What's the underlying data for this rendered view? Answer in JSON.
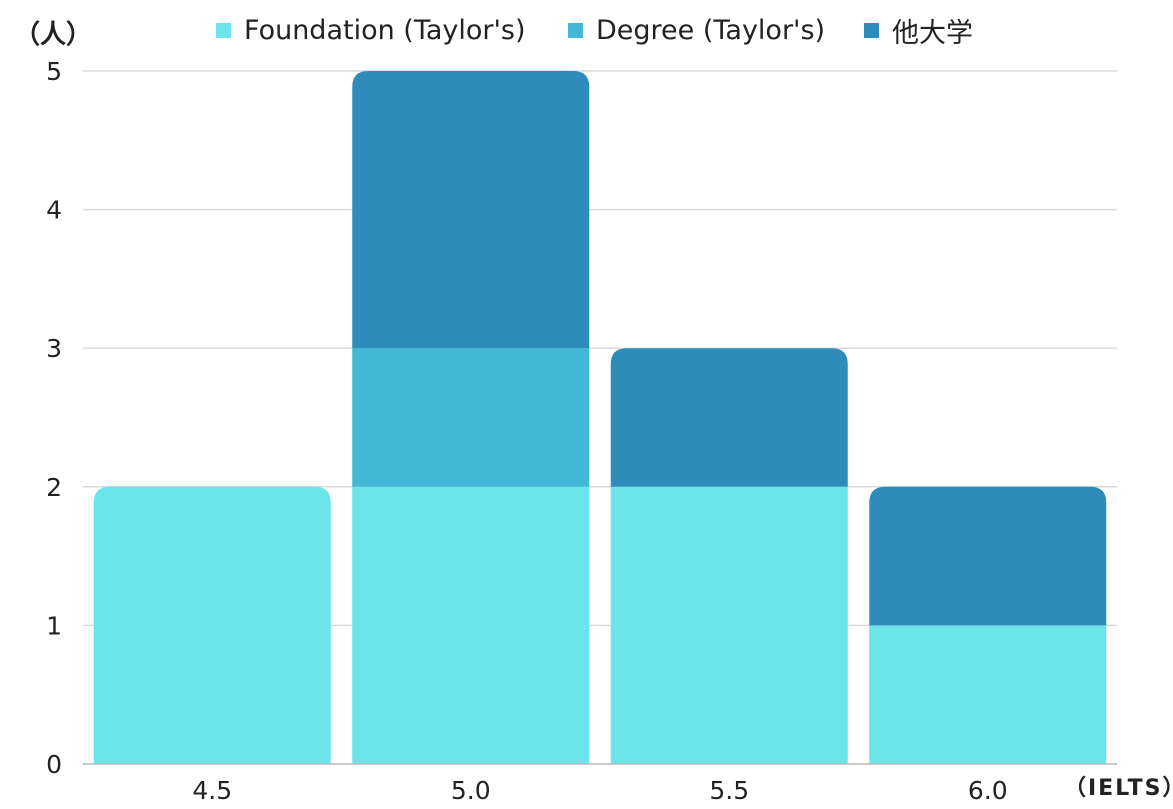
{
  "chart_data": {
    "type": "bar",
    "stacked": true,
    "categories": [
      "4.5",
      "5.0",
      "5.5",
      "6.0"
    ],
    "series": [
      {
        "name": "Foundation (Taylor's)",
        "values": [
          2,
          2,
          2,
          1
        ],
        "color": "#6ce5ea"
      },
      {
        "name": "Degree (Taylor's)",
        "values": [
          0,
          1,
          0,
          0
        ],
        "color": "#43b8d6"
      },
      {
        "name": "他大学",
        "values": [
          0,
          2,
          1,
          1
        ],
        "color": "#2e8cba"
      }
    ],
    "ylim": [
      0,
      5
    ],
    "yticks": [
      0,
      1,
      2,
      3,
      4,
      5
    ],
    "ylabel": "（人）",
    "xlabel": "（IELTS）",
    "grid": true,
    "legend_position": "top"
  }
}
